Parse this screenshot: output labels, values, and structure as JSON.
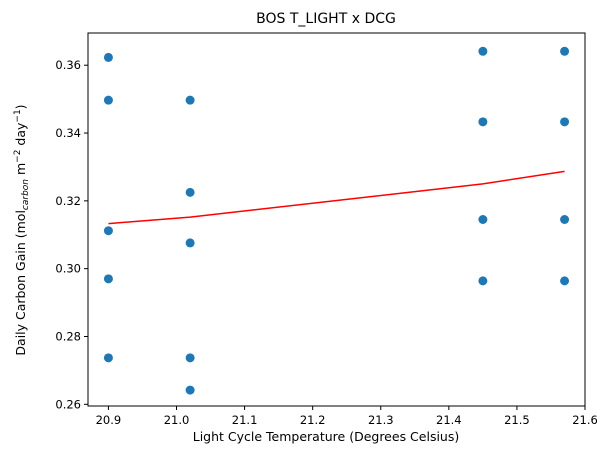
{
  "chart_data": {
    "type": "scatter",
    "title": "BOS T_LIGHT x DCG",
    "xlabel": "Light Cycle Temperature (Degrees Celsius)",
    "ylabel": {
      "prefix": "Daily Carbon Gain (mol",
      "subscript": "carbon",
      "middle": " m",
      "sup1": "−2",
      "middle2": " day",
      "sup2": "−1",
      "suffix": ")"
    },
    "xlim": [
      20.87,
      21.6
    ],
    "ylim": [
      0.2595,
      0.3695
    ],
    "xticks": [
      20.9,
      21.0,
      21.1,
      21.2,
      21.3,
      21.4,
      21.5,
      21.6
    ],
    "xtick_labels": [
      "20.9",
      "21.0",
      "21.1",
      "21.2",
      "21.3",
      "21.4",
      "21.5",
      "21.6"
    ],
    "yticks": [
      0.26,
      0.28,
      0.3,
      0.32,
      0.34,
      0.36
    ],
    "ytick_labels": [
      "0.26",
      "0.28",
      "0.30",
      "0.32",
      "0.34",
      "0.36"
    ],
    "grid": false,
    "series": [
      {
        "kind": "points",
        "color": "#1f77b4",
        "points": [
          {
            "x": 20.9,
            "y": 0.3623
          },
          {
            "x": 20.9,
            "y": 0.3497
          },
          {
            "x": 20.9,
            "y": 0.3112
          },
          {
            "x": 20.9,
            "y": 0.297
          },
          {
            "x": 20.9,
            "y": 0.2737
          },
          {
            "x": 21.02,
            "y": 0.3497
          },
          {
            "x": 21.02,
            "y": 0.3225
          },
          {
            "x": 21.02,
            "y": 0.3076
          },
          {
            "x": 21.02,
            "y": 0.2737
          },
          {
            "x": 21.02,
            "y": 0.2642
          },
          {
            "x": 21.45,
            "y": 0.3641
          },
          {
            "x": 21.45,
            "y": 0.3433
          },
          {
            "x": 21.45,
            "y": 0.3145
          },
          {
            "x": 21.45,
            "y": 0.2964
          },
          {
            "x": 21.57,
            "y": 0.3641
          },
          {
            "x": 21.57,
            "y": 0.3433
          },
          {
            "x": 21.57,
            "y": 0.3145
          },
          {
            "x": 21.57,
            "y": 0.2964
          }
        ]
      },
      {
        "kind": "line",
        "color": "#ff0000",
        "points": [
          {
            "x": 20.9,
            "y": 0.3133
          },
          {
            "x": 21.02,
            "y": 0.3152
          },
          {
            "x": 21.45,
            "y": 0.325
          },
          {
            "x": 21.57,
            "y": 0.3287
          }
        ]
      }
    ]
  }
}
